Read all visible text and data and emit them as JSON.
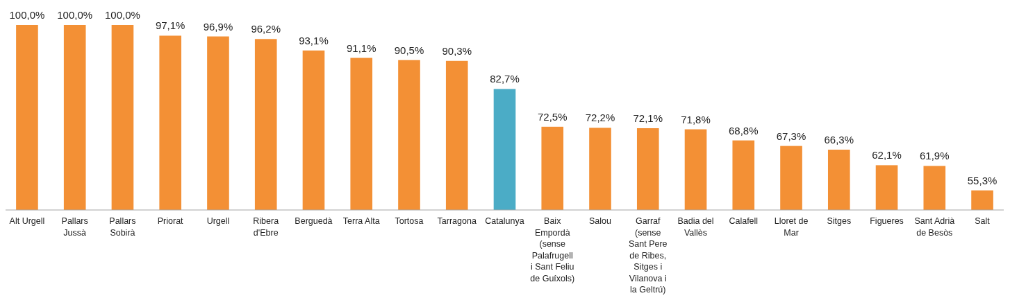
{
  "chart_data": {
    "type": "bar",
    "categories": [
      "Alt Urgell",
      "Pallars Jussà",
      "Pallars Sobirà",
      "Priorat",
      "Urgell",
      "Ribera d'Ebre",
      "Berguedà",
      "Terra Alta",
      "Tortosa",
      "Tarragona",
      "Catalunya",
      "Baix Empordà (sense Palafrugell i Sant Feliu de Guíxols)",
      "Salou",
      "Garraf (sense Sant Pere de Ribes, Sitges i Vilanova i la Geltrú)",
      "Badia del Vallès",
      "Calafell",
      "Lloret de Mar",
      "Sitges",
      "Figueres",
      "Sant Adrià de Besòs",
      "Salt"
    ],
    "values": [
      100.0,
      100.0,
      100.0,
      97.1,
      96.9,
      96.2,
      93.1,
      91.1,
      90.5,
      90.3,
      82.7,
      72.5,
      72.2,
      72.1,
      71.8,
      68.8,
      67.3,
      66.3,
      62.1,
      61.9,
      55.3
    ],
    "value_labels": [
      "100,0%",
      "100,0%",
      "100,0%",
      "97,1%",
      "96,9%",
      "96,2%",
      "93,1%",
      "91,1%",
      "90,5%",
      "90,3%",
      "82,7%",
      "72,5%",
      "72,2%",
      "72,1%",
      "71,8%",
      "68,8%",
      "67,3%",
      "66,3%",
      "62,1%",
      "61,9%",
      "55,3%"
    ],
    "colors": [
      "#f39035",
      "#f39035",
      "#f39035",
      "#f39035",
      "#f39035",
      "#f39035",
      "#f39035",
      "#f39035",
      "#f39035",
      "#f39035",
      "#4bacc6",
      "#f39035",
      "#f39035",
      "#f39035",
      "#f39035",
      "#f39035",
      "#f39035",
      "#f39035",
      "#f39035",
      "#f39035",
      "#f39035"
    ],
    "ylim": [
      50,
      100
    ],
    "tick_labels": "x"
  }
}
